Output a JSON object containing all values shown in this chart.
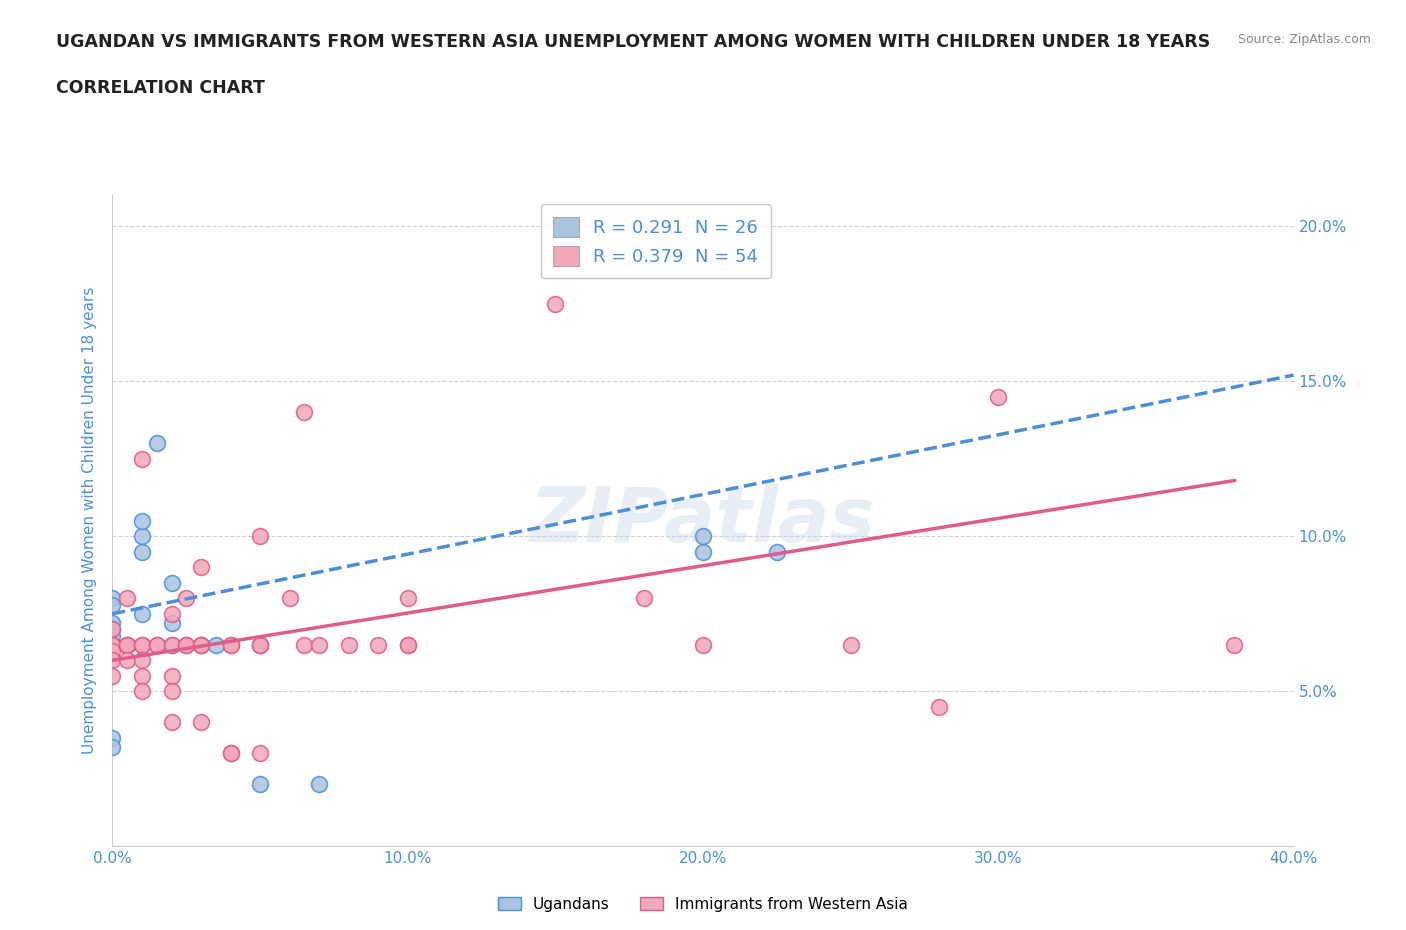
{
  "title_line1": "UGANDAN VS IMMIGRANTS FROM WESTERN ASIA UNEMPLOYMENT AMONG WOMEN WITH CHILDREN UNDER 18 YEARS",
  "title_line2": "CORRELATION CHART",
  "source": "Source: ZipAtlas.com",
  "ylabel_label": "Unemployment Among Women with Children Under 18 years",
  "xlim": [
    0.0,
    0.4
  ],
  "ylim": [
    0.0,
    0.21
  ],
  "xticks": [
    0.0,
    0.1,
    0.2,
    0.3,
    0.4
  ],
  "yticks": [
    0.0,
    0.05,
    0.1,
    0.15,
    0.2
  ],
  "xtick_labels": [
    "0.0%",
    "10.0%",
    "20.0%",
    "30.0%",
    "40.0%"
  ],
  "ytick_labels_right": [
    "",
    "5.0%",
    "10.0%",
    "15.0%",
    "20.0%"
  ],
  "ugandan_color_fill": "#a8c4e0",
  "ugandan_color_edge": "#4a90d9",
  "western_asia_color_fill": "#f4a7b9",
  "western_asia_color_edge": "#e05c8a",
  "watermark": "ZIPatlas",
  "ugandan_scatter": [
    [
      0.0,
      0.072
    ],
    [
      0.0,
      0.07
    ],
    [
      0.0,
      0.068
    ],
    [
      0.0,
      0.065
    ],
    [
      0.0,
      0.08
    ],
    [
      0.0,
      0.078
    ],
    [
      0.005,
      0.065
    ],
    [
      0.005,
      0.065
    ],
    [
      0.01,
      0.075
    ],
    [
      0.01,
      0.1
    ],
    [
      0.01,
      0.095
    ],
    [
      0.01,
      0.105
    ],
    [
      0.015,
      0.13
    ],
    [
      0.02,
      0.085
    ],
    [
      0.02,
      0.072
    ],
    [
      0.02,
      0.065
    ],
    [
      0.03,
      0.065
    ],
    [
      0.035,
      0.065
    ],
    [
      0.05,
      0.065
    ],
    [
      0.05,
      0.02
    ],
    [
      0.07,
      0.02
    ],
    [
      0.2,
      0.095
    ],
    [
      0.2,
      0.1
    ],
    [
      0.225,
      0.095
    ],
    [
      0.0,
      0.035
    ],
    [
      0.0,
      0.032
    ]
  ],
  "western_asia_scatter": [
    [
      0.0,
      0.07
    ],
    [
      0.0,
      0.065
    ],
    [
      0.0,
      0.065
    ],
    [
      0.0,
      0.063
    ],
    [
      0.0,
      0.06
    ],
    [
      0.0,
      0.055
    ],
    [
      0.005,
      0.08
    ],
    [
      0.005,
      0.065
    ],
    [
      0.005,
      0.065
    ],
    [
      0.005,
      0.06
    ],
    [
      0.01,
      0.125
    ],
    [
      0.01,
      0.065
    ],
    [
      0.01,
      0.065
    ],
    [
      0.01,
      0.06
    ],
    [
      0.01,
      0.055
    ],
    [
      0.01,
      0.05
    ],
    [
      0.015,
      0.065
    ],
    [
      0.015,
      0.065
    ],
    [
      0.02,
      0.075
    ],
    [
      0.02,
      0.065
    ],
    [
      0.02,
      0.055
    ],
    [
      0.02,
      0.05
    ],
    [
      0.02,
      0.04
    ],
    [
      0.025,
      0.08
    ],
    [
      0.025,
      0.065
    ],
    [
      0.025,
      0.065
    ],
    [
      0.03,
      0.09
    ],
    [
      0.03,
      0.065
    ],
    [
      0.03,
      0.065
    ],
    [
      0.03,
      0.04
    ],
    [
      0.04,
      0.065
    ],
    [
      0.04,
      0.065
    ],
    [
      0.04,
      0.03
    ],
    [
      0.04,
      0.03
    ],
    [
      0.05,
      0.1
    ],
    [
      0.05,
      0.065
    ],
    [
      0.05,
      0.065
    ],
    [
      0.05,
      0.03
    ],
    [
      0.06,
      0.08
    ],
    [
      0.065,
      0.065
    ],
    [
      0.065,
      0.14
    ],
    [
      0.07,
      0.065
    ],
    [
      0.08,
      0.065
    ],
    [
      0.09,
      0.065
    ],
    [
      0.1,
      0.08
    ],
    [
      0.1,
      0.065
    ],
    [
      0.1,
      0.065
    ],
    [
      0.15,
      0.175
    ],
    [
      0.18,
      0.08
    ],
    [
      0.2,
      0.065
    ],
    [
      0.25,
      0.065
    ],
    [
      0.28,
      0.045
    ],
    [
      0.3,
      0.145
    ],
    [
      0.38,
      0.065
    ]
  ],
  "ugandan_trend_x": [
    0.0,
    0.4
  ],
  "ugandan_trend_y": [
    0.075,
    0.152
  ],
  "western_asia_trend_x": [
    0.0,
    0.38
  ],
  "western_asia_trend_y": [
    0.06,
    0.118
  ],
  "bg_color": "#ffffff",
  "grid_color": "#cccccc",
  "title_color": "#222222",
  "axis_color": "#4a90d9",
  "legend_R_N_color": "#4a90d9",
  "legend1_label": "R = 0.291  N = 26",
  "legend2_label": "R = 0.379  N = 54",
  "bottom_legend1": "Ugandans",
  "bottom_legend2": "Immigrants from Western Asia"
}
